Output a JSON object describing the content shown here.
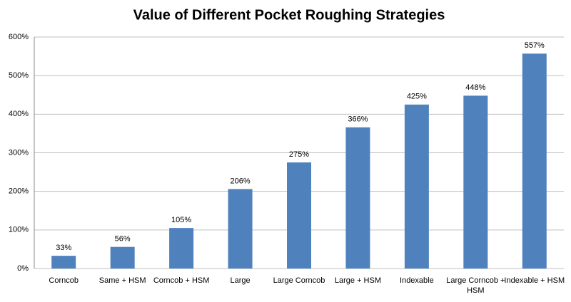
{
  "chart_data": {
    "type": "bar",
    "title": "Value of Different Pocket Roughing Strategies",
    "categories": [
      "Corncob",
      "Same + HSM",
      "Corncob + HSM",
      "Large",
      "Large Corncob",
      "Large + HSM",
      "Indexable",
      "Large Corncob + HSM",
      "Indexable + HSM"
    ],
    "values": [
      33,
      56,
      105,
      206,
      275,
      366,
      425,
      448,
      557
    ],
    "value_labels": [
      "33%",
      "56%",
      "105%",
      "206%",
      "275%",
      "366%",
      "425%",
      "448%",
      "557%"
    ],
    "color": "#4f81bd",
    "ylim": [
      0,
      600
    ],
    "yticks": [
      {
        "value": 0,
        "label": "0%"
      },
      {
        "value": 100,
        "label": "100%"
      },
      {
        "value": 200,
        "label": "200%"
      },
      {
        "value": 300,
        "label": "300%"
      },
      {
        "value": 400,
        "label": "400%"
      },
      {
        "value": 500,
        "label": "500%"
      },
      {
        "value": 600,
        "label": "600%"
      }
    ],
    "grid": true
  }
}
